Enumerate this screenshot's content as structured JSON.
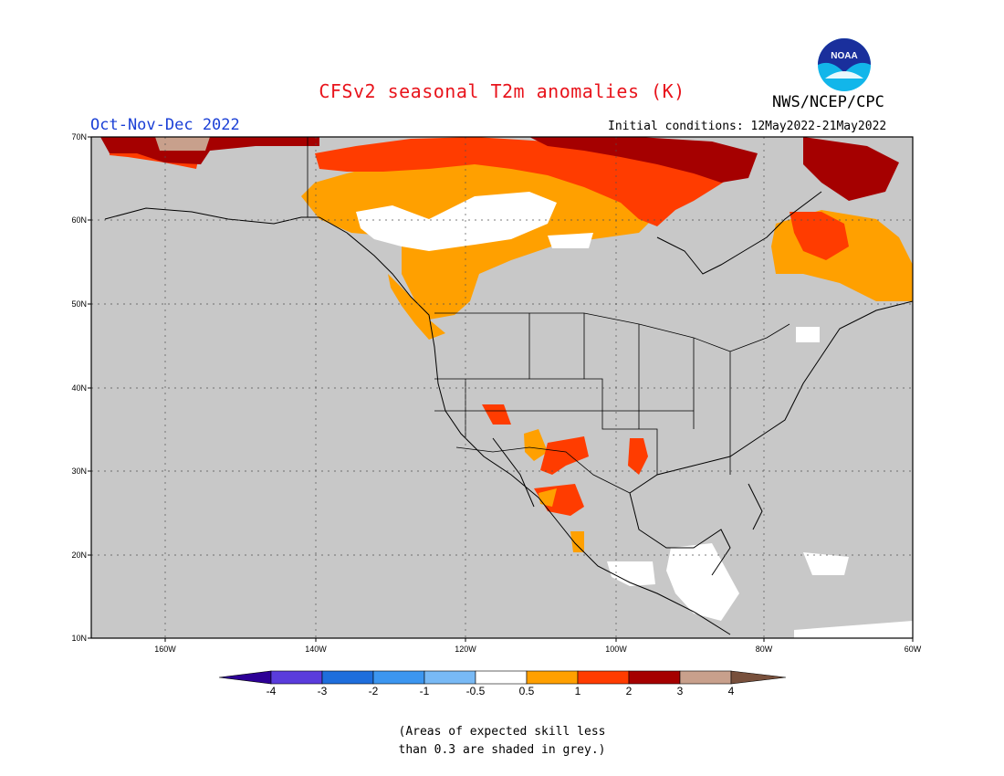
{
  "title": "CFSv2 seasonal T2m anomalies (K)",
  "season": "Oct-Nov-Dec 2022",
  "initial_conditions": "Initial conditions: 12May2022-21May2022",
  "agency": "NWS/NCEP/CPC",
  "logo_text": "NOAA",
  "note_line1": "(Areas of expected skill less",
  "note_line2": "than 0.3 are shaded in grey.)",
  "colors": {
    "grey_low_skill": "#c8c8c8",
    "white": "#ffffff",
    "orange": "#ffa000",
    "red_orange": "#ff3c00",
    "dark_red": "#a50000",
    "tan": "#c8a08c",
    "brown": "#78503c",
    "light_blue": "#78b9f5",
    "mid_blue": "#3c96f0",
    "blue": "#1e6edc",
    "indigo": "#5a3cdc",
    "deep_purple": "#2d0096"
  },
  "map": {
    "lat_labels": [
      "70N",
      "60N",
      "50N",
      "40N",
      "30N",
      "20N",
      "10N"
    ],
    "lon_labels": [
      "160W",
      "140W",
      "120W",
      "100W",
      "80W",
      "60W"
    ],
    "colorbar": {
      "labels": [
        "-4",
        "-3",
        "-2",
        "-1",
        "-0.5",
        "0.5",
        "1",
        "2",
        "3",
        "4"
      ],
      "colors": [
        "#2d0096",
        "#5a3cdc",
        "#1e6edc",
        "#3c96f0",
        "#78b9f5",
        "#ffffff",
        "#ffa000",
        "#ff3c00",
        "#a50000",
        "#c8a08c",
        "#78503c"
      ]
    },
    "anomaly_regions": [
      {
        "region": "Alaska north coast",
        "category": "3 to 4"
      },
      {
        "region": "Northern Canada / Arctic coast",
        "category": "2 to 3"
      },
      {
        "region": "Western Canada",
        "category": "0.5 to 1"
      },
      {
        "region": "Central Canada north of prairies",
        "category": "-0.5 to 0.5"
      },
      {
        "region": "Hudson Bay / Nunavut",
        "category": "1 to 2"
      },
      {
        "region": "Quebec / Labrador",
        "category": "1 to 2"
      },
      {
        "region": "Pacific Northwest coast",
        "category": "0.5 to 1"
      },
      {
        "region": "US Southwest / Northern Mexico",
        "category": "1 to 2"
      },
      {
        "region": "Southern Mexico / Central America",
        "category": "-0.5 to 0.5"
      }
    ]
  }
}
